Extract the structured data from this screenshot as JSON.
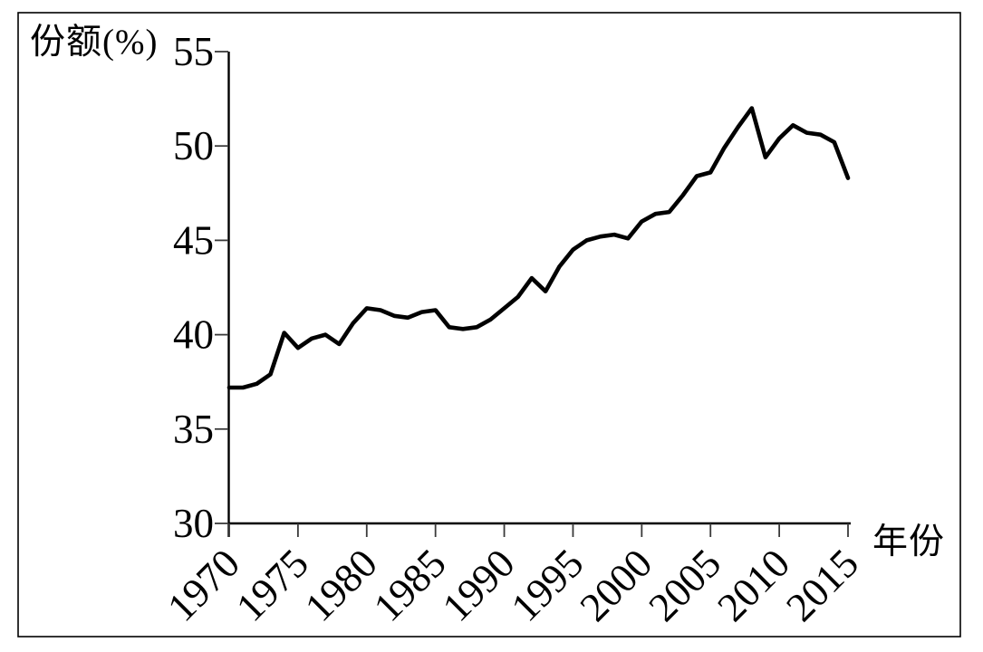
{
  "chart_data": {
    "type": "line",
    "title": "",
    "xlabel": "年份",
    "ylabel": "份额(%)",
    "xlim": [
      1970,
      2015
    ],
    "ylim": [
      30,
      55
    ],
    "xticks": [
      1970,
      1975,
      1980,
      1985,
      1990,
      1995,
      2000,
      2005,
      2010,
      2015
    ],
    "yticks": [
      30,
      35,
      40,
      45,
      50,
      55
    ],
    "grid": false,
    "legend": "none",
    "line_color": "#000000",
    "x": [
      1970,
      1971,
      1972,
      1973,
      1974,
      1975,
      1976,
      1977,
      1978,
      1979,
      1980,
      1981,
      1982,
      1983,
      1984,
      1985,
      1986,
      1987,
      1988,
      1989,
      1990,
      1991,
      1992,
      1993,
      1994,
      1995,
      1996,
      1997,
      1998,
      1999,
      2000,
      2001,
      2002,
      2003,
      2004,
      2005,
      2006,
      2007,
      2008,
      2009,
      2010,
      2011,
      2012,
      2013,
      2014,
      2015
    ],
    "series": [
      {
        "name": "份额",
        "values": [
          37.2,
          37.2,
          37.4,
          37.9,
          40.1,
          39.3,
          39.8,
          40.0,
          39.5,
          40.6,
          41.4,
          41.3,
          41.0,
          40.9,
          41.2,
          41.3,
          40.4,
          40.3,
          40.4,
          40.8,
          41.4,
          42.0,
          43.0,
          42.3,
          43.6,
          44.5,
          45.0,
          45.2,
          45.3,
          45.1,
          46.0,
          46.4,
          46.5,
          47.4,
          48.4,
          48.6,
          49.9,
          51.0,
          52.0,
          49.4,
          50.4,
          51.1,
          50.7,
          50.6,
          50.2,
          48.3
        ]
      }
    ]
  }
}
